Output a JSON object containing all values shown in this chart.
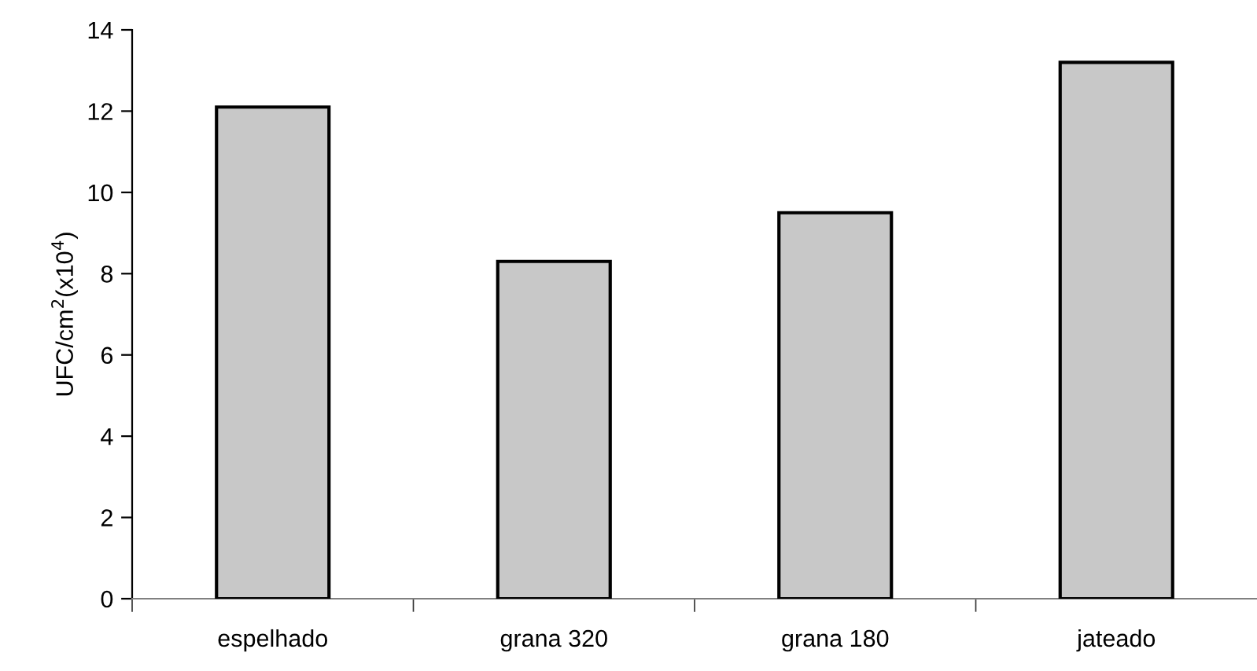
{
  "chart_data": {
    "type": "bar",
    "ylabel": "UFC/cm$^{2}$(x10$^{4}$)",
    "categories": [
      "espelhado",
      "grana 320",
      "grana 180",
      "jateado"
    ],
    "values": [
      12.1,
      8.3,
      9.5,
      13.2
    ],
    "color": "#c8c8c8",
    "ylim": [
      0,
      14
    ],
    "yticks": [
      0,
      2,
      4,
      6,
      8,
      10,
      12,
      14
    ],
    "grid": false,
    "legend": false
  }
}
